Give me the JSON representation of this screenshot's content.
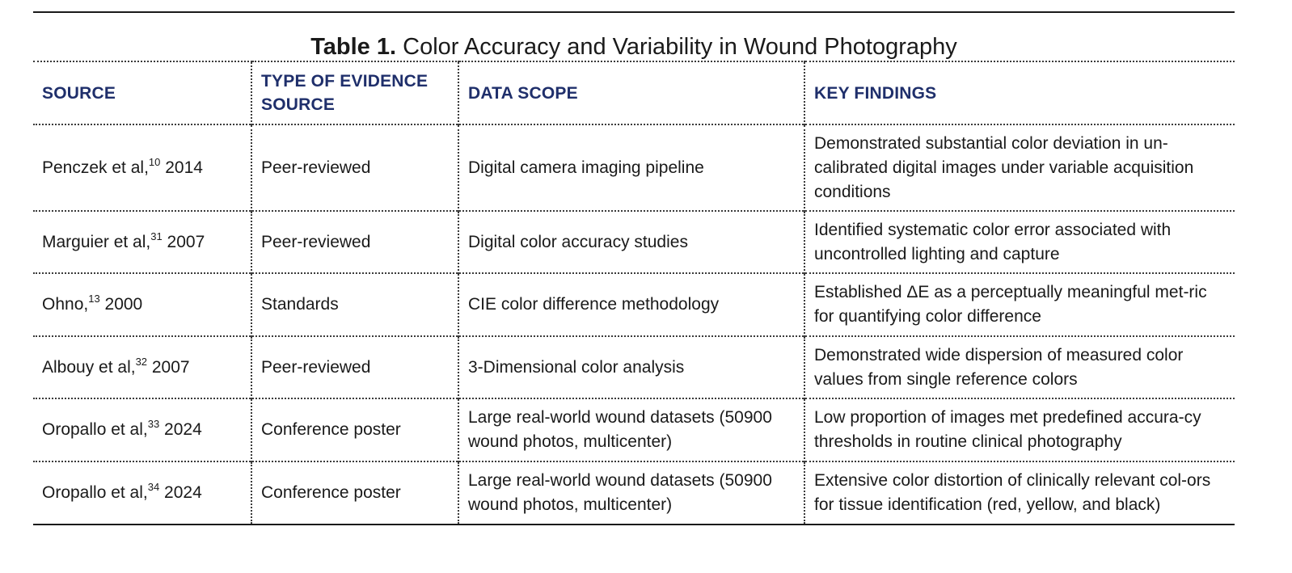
{
  "table": {
    "caption_label": "Table 1.",
    "caption_text": "Color Accuracy and Variability in Wound Photography",
    "headers": [
      "SOURCE",
      "TYPE OF EVIDENCE SOURCE",
      "DATA SCOPE",
      "KEY FINDINGS"
    ],
    "rows": [
      {
        "source_name": "Penczek et al,",
        "source_ref": "10",
        "source_year": " 2014",
        "evidence": "Peer-reviewed",
        "scope": "Digital camera imaging pipeline",
        "findings": "Demonstrated substantial color deviation in un-calibrated digital images under variable acquisition conditions"
      },
      {
        "source_name": "Marguier et al,",
        "source_ref": "31",
        "source_year": " 2007",
        "evidence": "Peer-reviewed",
        "scope": "Digital color accuracy studies",
        "findings": "Identified systematic color error associated with uncontrolled lighting and capture"
      },
      {
        "source_name": "Ohno,",
        "source_ref": "13",
        "source_year": " 2000",
        "evidence": "Standards",
        "scope": "CIE color difference methodology",
        "findings": "Established ΔE as a perceptually meaningful met-ric for quantifying color difference"
      },
      {
        "source_name": "Albouy et al,",
        "source_ref": "32",
        "source_year": " 2007",
        "evidence": "Peer-reviewed",
        "scope": "3-Dimensional color analysis",
        "findings": "Demonstrated wide dispersion of measured color values from single reference colors"
      },
      {
        "source_name": "Oropallo et al,",
        "source_ref": "33",
        "source_year": " 2024",
        "evidence": "Conference poster",
        "scope": "Large real-world wound datasets (50900 wound photos, multicenter)",
        "findings": "Low proportion of images met predefined accura-cy thresholds in routine clinical photography"
      },
      {
        "source_name": "Oropallo et al,",
        "source_ref": "34",
        "source_year": " 2024",
        "evidence": "Conference poster",
        "scope": "Large real-world wound datasets (50900 wound photos, multicenter)",
        "findings": "Extensive color distortion of clinically relevant col-ors for tissue identification (red, yellow, and black)"
      }
    ]
  }
}
